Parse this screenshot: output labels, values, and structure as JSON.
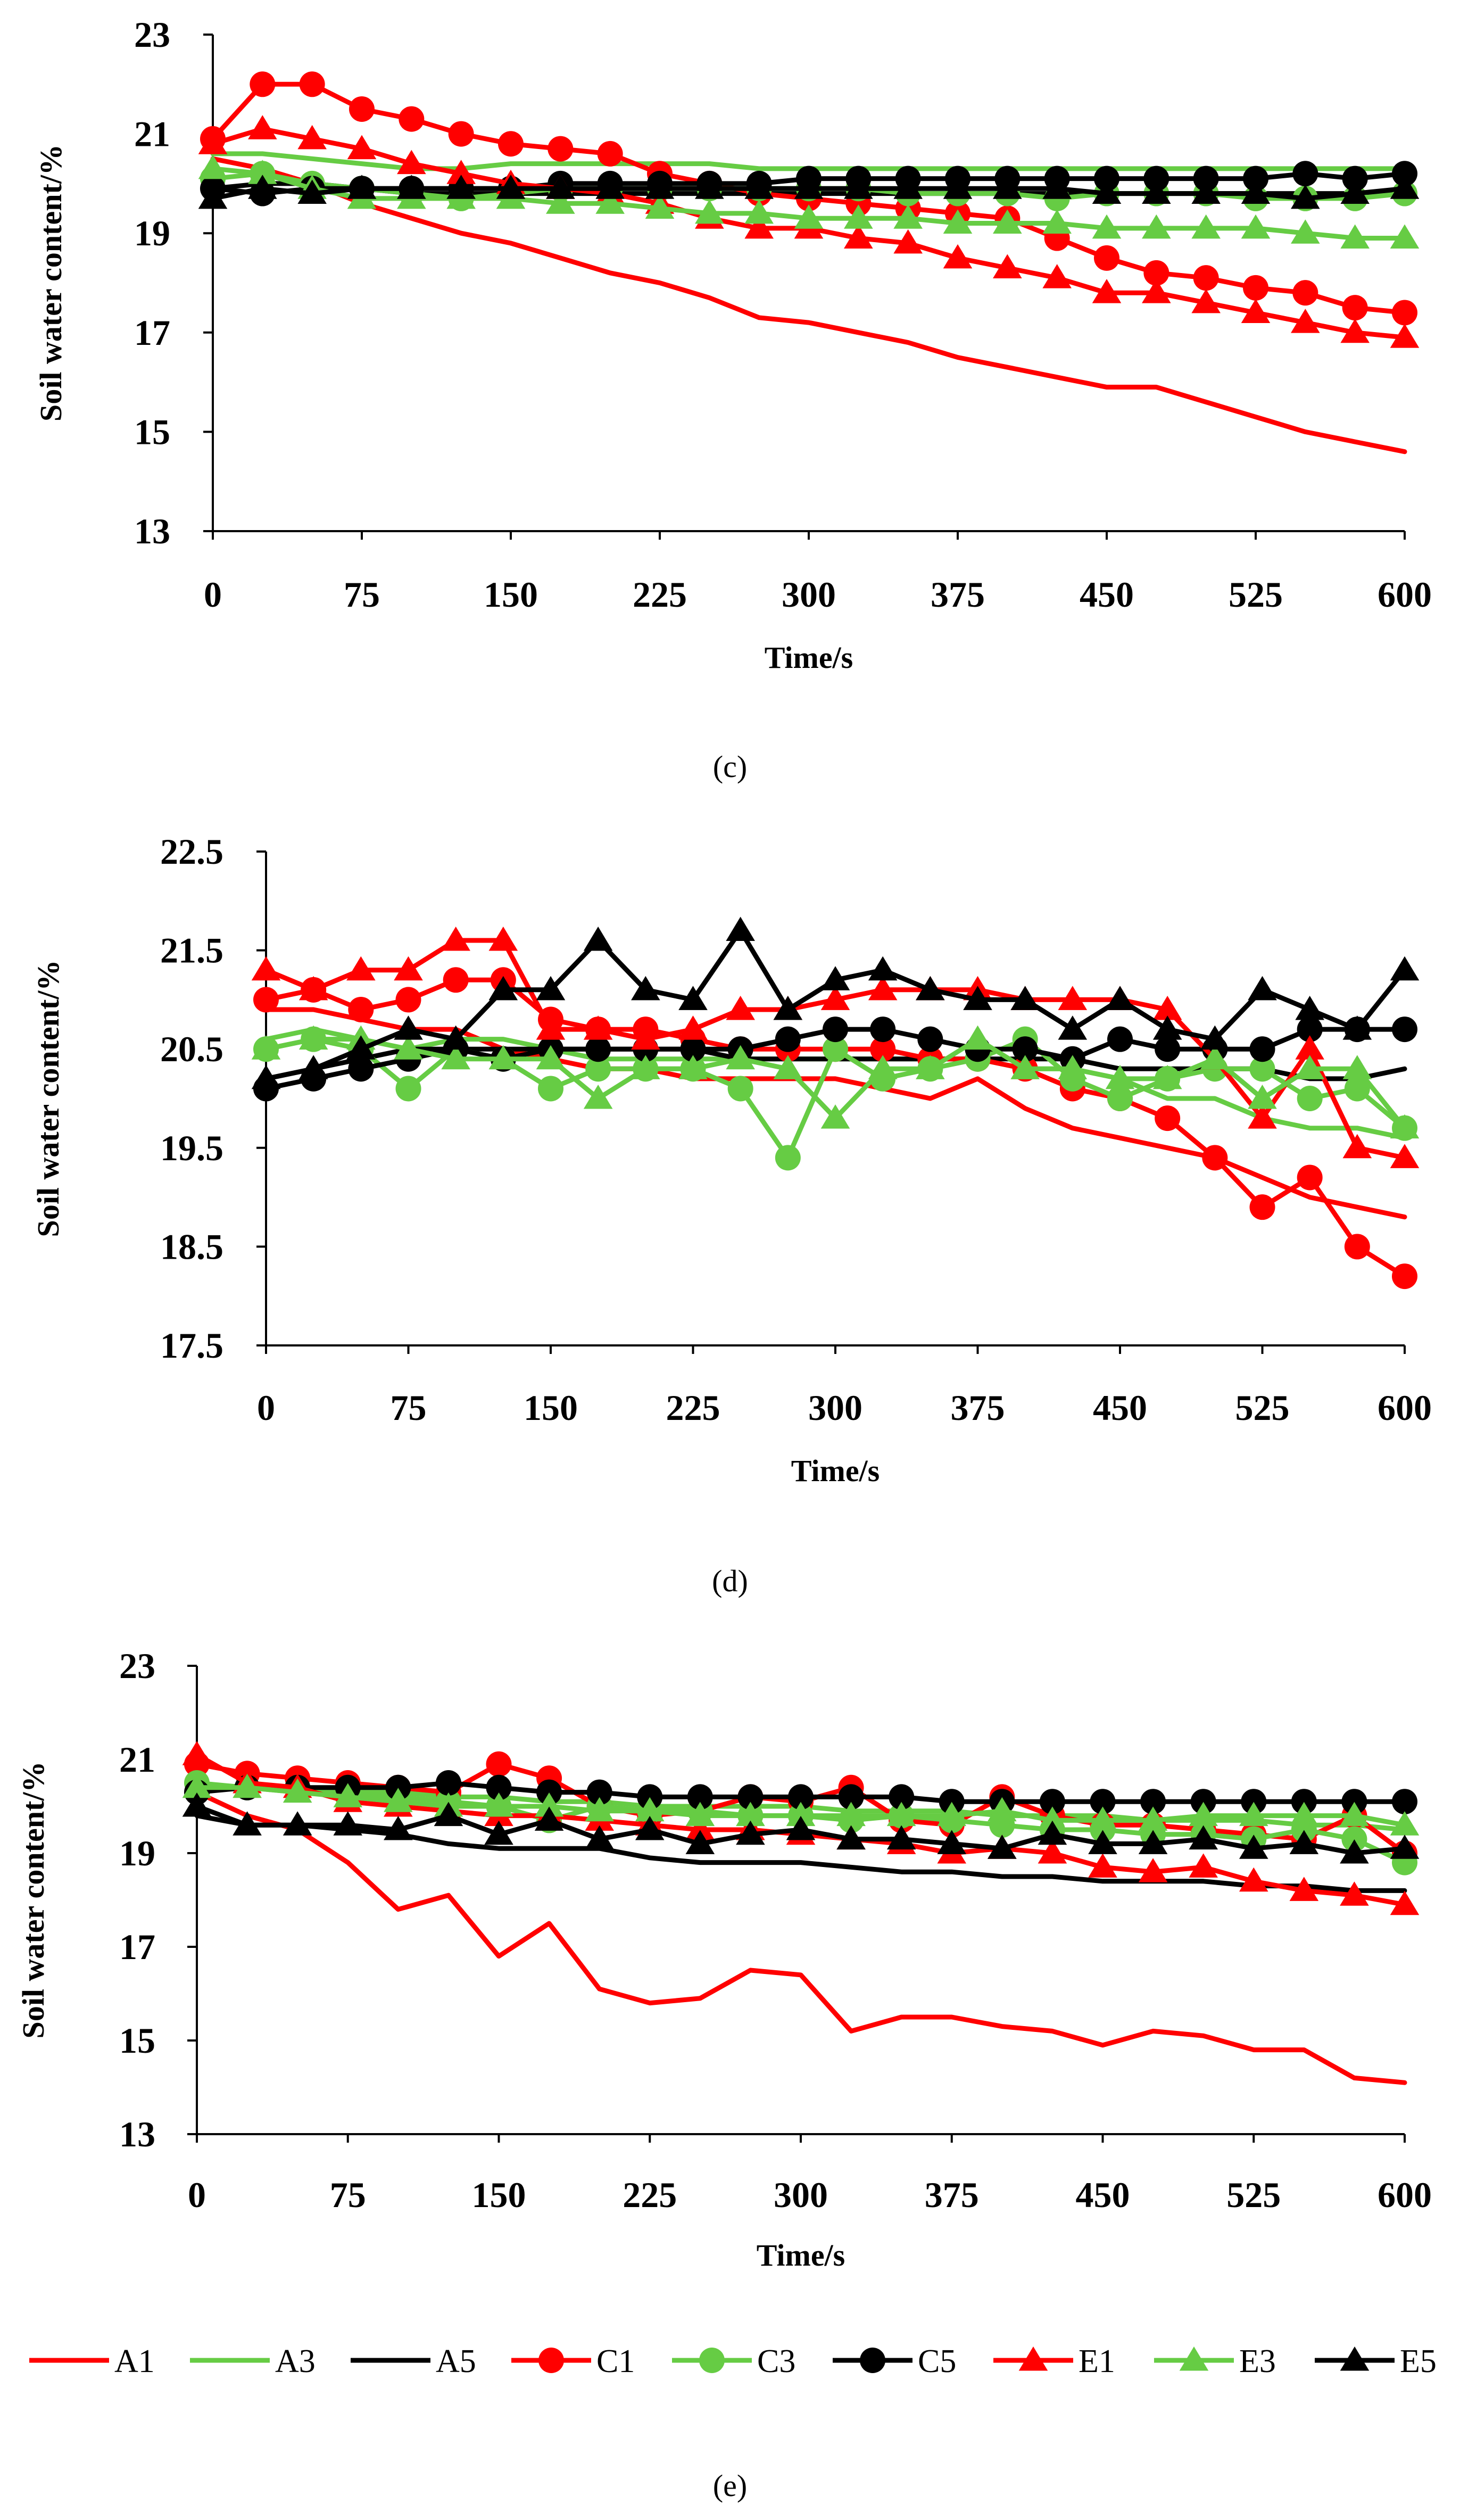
{
  "legend": [
    "A1",
    "A3",
    "A5",
    "C1",
    "C3",
    "C5",
    "E1",
    "E3",
    "E5"
  ],
  "series_styles": {
    "A1": {
      "color": "#ff0000",
      "marker": "none"
    },
    "A3": {
      "color": "#66cc44",
      "marker": "none"
    },
    "A5": {
      "color": "#000000",
      "marker": "none"
    },
    "C1": {
      "color": "#ff0000",
      "marker": "circle"
    },
    "C3": {
      "color": "#66cc44",
      "marker": "circle"
    },
    "C5": {
      "color": "#000000",
      "marker": "circle"
    },
    "E1": {
      "color": "#ff0000",
      "marker": "triangle"
    },
    "E3": {
      "color": "#66cc44",
      "marker": "triangle"
    },
    "E5": {
      "color": "#000000",
      "marker": "triangle"
    }
  },
  "chart_data": [
    {
      "type": "line",
      "caption": "(c)",
      "xlabel": "Time/s",
      "ylabel": "Soil water content/%",
      "xlim": [
        0,
        600
      ],
      "ylim": [
        13,
        23
      ],
      "x_ticks": [
        0,
        75,
        150,
        225,
        300,
        375,
        450,
        525,
        600
      ],
      "y_ticks": [
        13,
        15,
        17,
        19,
        21,
        23
      ],
      "y_tick_labels": [
        "13",
        "15",
        "17",
        "19",
        "21",
        "23"
      ],
      "x": [
        0,
        25,
        50,
        75,
        100,
        125,
        150,
        175,
        200,
        225,
        250,
        275,
        300,
        325,
        350,
        375,
        400,
        425,
        450,
        475,
        500,
        525,
        550,
        575,
        600
      ],
      "series": [
        {
          "name": "A1",
          "values": [
            20.5,
            20.3,
            20.0,
            19.6,
            19.3,
            19.0,
            18.8,
            18.5,
            18.2,
            18.0,
            17.7,
            17.3,
            17.2,
            17.0,
            16.8,
            16.5,
            16.3,
            16.1,
            15.9,
            15.9,
            15.6,
            15.3,
            15.0,
            14.8,
            14.6
          ]
        },
        {
          "name": "A3",
          "values": [
            20.6,
            20.6,
            20.5,
            20.4,
            20.3,
            20.3,
            20.4,
            20.4,
            20.4,
            20.4,
            20.4,
            20.3,
            20.3,
            20.3,
            20.3,
            20.3,
            20.3,
            20.3,
            20.3,
            20.3,
            20.3,
            20.3,
            20.3,
            20.3,
            20.3
          ]
        },
        {
          "name": "A5",
          "values": [
            19.9,
            20.0,
            20.0,
            19.9,
            19.8,
            19.8,
            19.8,
            19.8,
            19.8,
            19.8,
            19.8,
            19.8,
            19.8,
            19.8,
            19.8,
            19.8,
            19.8,
            19.8,
            19.8,
            19.8,
            19.8,
            19.8,
            19.8,
            19.8,
            19.8
          ]
        },
        {
          "name": "C1",
          "values": [
            20.9,
            22.0,
            22.0,
            21.5,
            21.3,
            21.0,
            20.8,
            20.7,
            20.6,
            20.2,
            20.0,
            19.8,
            19.7,
            19.6,
            19.5,
            19.4,
            19.3,
            18.9,
            18.5,
            18.2,
            18.1,
            17.9,
            17.8,
            17.5,
            17.4
          ]
        },
        {
          "name": "C3",
          "values": [
            20.1,
            20.2,
            20.0,
            19.9,
            19.8,
            19.7,
            19.8,
            19.9,
            19.9,
            19.9,
            19.9,
            19.9,
            19.9,
            19.9,
            19.8,
            19.8,
            19.8,
            19.7,
            19.8,
            19.8,
            19.8,
            19.7,
            19.7,
            19.7,
            19.8
          ]
        },
        {
          "name": "C5",
          "values": [
            19.9,
            19.8,
            19.9,
            19.9,
            19.9,
            19.9,
            19.9,
            20.0,
            20.0,
            20.0,
            20.0,
            20.0,
            20.1,
            20.1,
            20.1,
            20.1,
            20.1,
            20.1,
            20.1,
            20.1,
            20.1,
            20.1,
            20.2,
            20.1,
            20.2
          ]
        },
        {
          "name": "E1",
          "values": [
            20.8,
            21.1,
            20.9,
            20.7,
            20.4,
            20.2,
            20.0,
            19.9,
            19.8,
            19.6,
            19.3,
            19.1,
            19.1,
            18.9,
            18.8,
            18.5,
            18.3,
            18.1,
            17.8,
            17.8,
            17.6,
            17.4,
            17.2,
            17.0,
            16.9
          ]
        },
        {
          "name": "E3",
          "values": [
            20.3,
            20.2,
            19.9,
            19.7,
            19.7,
            19.7,
            19.7,
            19.6,
            19.6,
            19.5,
            19.4,
            19.4,
            19.3,
            19.3,
            19.3,
            19.2,
            19.2,
            19.2,
            19.1,
            19.1,
            19.1,
            19.1,
            19.0,
            18.9,
            18.9
          ]
        },
        {
          "name": "E5",
          "values": [
            19.7,
            19.9,
            19.8,
            19.9,
            19.9,
            19.9,
            19.9,
            19.9,
            19.9,
            19.9,
            19.9,
            19.9,
            19.9,
            19.9,
            19.9,
            19.9,
            19.9,
            19.9,
            19.8,
            19.8,
            19.8,
            19.8,
            19.7,
            19.8,
            19.9
          ]
        }
      ]
    },
    {
      "type": "line",
      "caption": "(d)",
      "xlabel": "Time/s",
      "ylabel": "Soil water content/%",
      "xlim": [
        0,
        600
      ],
      "ylim": [
        17.5,
        22.5
      ],
      "x_ticks": [
        0,
        75,
        150,
        225,
        300,
        375,
        450,
        525,
        600
      ],
      "y_ticks": [
        17.5,
        18.5,
        19.5,
        20.5,
        21.5,
        22.5
      ],
      "y_tick_labels": [
        "17.5",
        "18.5",
        "19.5",
        "20.5",
        "21.5",
        "22.5"
      ],
      "x": [
        0,
        25,
        50,
        75,
        100,
        125,
        150,
        175,
        200,
        225,
        250,
        275,
        300,
        325,
        350,
        375,
        400,
        425,
        450,
        475,
        500,
        525,
        550,
        575,
        600
      ],
      "series": [
        {
          "name": "A1",
          "values": [
            20.9,
            20.9,
            20.8,
            20.7,
            20.7,
            20.5,
            20.4,
            20.3,
            20.3,
            20.2,
            20.2,
            20.2,
            20.2,
            20.1,
            20.0,
            20.2,
            19.9,
            19.7,
            19.6,
            19.5,
            19.4,
            19.2,
            19.0,
            18.9,
            18.8
          ]
        },
        {
          "name": "A3",
          "values": [
            20.6,
            20.7,
            20.6,
            20.5,
            20.6,
            20.6,
            20.5,
            20.4,
            20.4,
            20.4,
            20.4,
            20.4,
            20.4,
            20.4,
            20.4,
            20.4,
            20.3,
            20.3,
            20.2,
            20.0,
            20.0,
            19.8,
            19.7,
            19.7,
            19.6
          ]
        },
        {
          "name": "A5",
          "values": [
            20.2,
            20.3,
            20.4,
            20.5,
            20.5,
            20.5,
            20.5,
            20.5,
            20.5,
            20.5,
            20.4,
            20.4,
            20.4,
            20.4,
            20.4,
            20.4,
            20.4,
            20.4,
            20.3,
            20.3,
            20.3,
            20.3,
            20.2,
            20.2,
            20.3
          ]
        },
        {
          "name": "C1",
          "values": [
            21.0,
            21.1,
            20.9,
            21.0,
            21.2,
            21.2,
            20.8,
            20.7,
            20.7,
            20.6,
            20.5,
            20.5,
            20.5,
            20.5,
            20.4,
            20.4,
            20.3,
            20.1,
            20.0,
            19.8,
            19.4,
            18.9,
            19.2,
            18.5,
            18.2
          ]
        },
        {
          "name": "C3",
          "values": [
            20.5,
            20.6,
            20.5,
            20.1,
            20.5,
            20.4,
            20.1,
            20.3,
            20.3,
            20.3,
            20.1,
            19.4,
            20.5,
            20.2,
            20.3,
            20.4,
            20.6,
            20.2,
            20.0,
            20.2,
            20.3,
            20.3,
            20.0,
            20.1,
            19.7
          ]
        },
        {
          "name": "C5",
          "values": [
            20.1,
            20.2,
            20.3,
            20.4,
            20.5,
            20.4,
            20.5,
            20.5,
            20.5,
            20.5,
            20.5,
            20.6,
            20.7,
            20.7,
            20.6,
            20.5,
            20.5,
            20.4,
            20.6,
            20.5,
            20.5,
            20.5,
            20.7,
            20.7,
            20.7
          ]
        },
        {
          "name": "E1",
          "values": [
            21.3,
            21.1,
            21.3,
            21.3,
            21.6,
            21.6,
            20.7,
            20.7,
            20.6,
            20.7,
            20.9,
            20.9,
            21.0,
            21.1,
            21.1,
            21.1,
            21.0,
            21.0,
            21.0,
            20.9,
            20.4,
            19.8,
            20.5,
            19.5,
            19.4
          ]
        },
        {
          "name": "E3",
          "values": [
            20.5,
            20.6,
            20.6,
            20.5,
            20.4,
            20.4,
            20.4,
            20.0,
            20.3,
            20.3,
            20.4,
            20.3,
            19.8,
            20.3,
            20.3,
            20.6,
            20.3,
            20.3,
            20.2,
            20.2,
            20.4,
            20.0,
            20.3,
            20.3,
            19.7
          ]
        },
        {
          "name": "E5",
          "values": [
            20.2,
            20.3,
            20.5,
            20.7,
            20.6,
            21.1,
            21.1,
            21.6,
            21.1,
            21.0,
            21.7,
            20.9,
            21.2,
            21.3,
            21.1,
            21.0,
            21.0,
            20.7,
            21.0,
            20.7,
            20.6,
            21.1,
            20.9,
            20.7,
            21.3
          ]
        }
      ]
    },
    {
      "type": "line",
      "caption": "(e)",
      "xlabel": "Time/s",
      "ylabel": "Soil water content/%",
      "xlim": [
        0,
        600
      ],
      "ylim": [
        13,
        23
      ],
      "x_ticks": [
        0,
        75,
        150,
        225,
        300,
        375,
        450,
        525,
        600
      ],
      "y_ticks": [
        13,
        15,
        17,
        19,
        21,
        23
      ],
      "y_tick_labels": [
        "13",
        "15",
        "17",
        "19",
        "21",
        "23"
      ],
      "x": [
        0,
        25,
        50,
        75,
        100,
        125,
        150,
        175,
        200,
        225,
        250,
        275,
        300,
        325,
        350,
        375,
        400,
        425,
        450,
        475,
        500,
        525,
        550,
        575,
        600
      ],
      "series": [
        {
          "name": "A1",
          "values": [
            20.3,
            19.8,
            19.5,
            18.8,
            17.8,
            18.1,
            16.8,
            17.5,
            16.1,
            15.8,
            15.9,
            16.5,
            16.4,
            15.2,
            15.5,
            15.5,
            15.3,
            15.2,
            14.9,
            15.2,
            15.1,
            14.8,
            14.8,
            14.2,
            14.1
          ]
        },
        {
          "name": "A3",
          "values": [
            20.4,
            20.4,
            20.3,
            20.3,
            20.3,
            20.2,
            20.2,
            20.1,
            20.1,
            20.0,
            20.0,
            20.0,
            20.0,
            19.9,
            19.9,
            19.9,
            19.8,
            19.8,
            19.8,
            19.7,
            19.7,
            19.7,
            19.6,
            19.6,
            19.5
          ]
        },
        {
          "name": "A5",
          "values": [
            19.8,
            19.6,
            19.6,
            19.5,
            19.4,
            19.2,
            19.1,
            19.1,
            19.1,
            18.9,
            18.8,
            18.8,
            18.8,
            18.7,
            18.6,
            18.6,
            18.5,
            18.5,
            18.4,
            18.4,
            18.4,
            18.3,
            18.3,
            18.2,
            18.2
          ]
        },
        {
          "name": "C1",
          "values": [
            20.9,
            20.7,
            20.6,
            20.5,
            20.4,
            20.3,
            20.9,
            20.6,
            20.0,
            19.8,
            19.9,
            20.2,
            20.1,
            20.4,
            19.7,
            19.6,
            20.2,
            19.8,
            19.6,
            19.6,
            19.5,
            19.4,
            19.3,
            19.8,
            19.0
          ]
        },
        {
          "name": "C3",
          "values": [
            20.5,
            20.4,
            20.4,
            20.2,
            20.2,
            20.1,
            20.0,
            19.7,
            20.0,
            19.9,
            19.9,
            19.8,
            19.8,
            19.7,
            19.8,
            19.7,
            19.6,
            19.5,
            19.5,
            19.4,
            19.4,
            19.3,
            19.5,
            19.3,
            18.8
          ]
        },
        {
          "name": "C5",
          "values": [
            20.3,
            20.4,
            20.4,
            20.4,
            20.4,
            20.5,
            20.4,
            20.3,
            20.3,
            20.2,
            20.2,
            20.2,
            20.2,
            20.2,
            20.2,
            20.1,
            20.1,
            20.1,
            20.1,
            20.1,
            20.1,
            20.1,
            20.1,
            20.1,
            20.1
          ]
        },
        {
          "name": "E1",
          "values": [
            21.1,
            20.5,
            20.4,
            20.1,
            20.0,
            19.9,
            19.8,
            19.8,
            19.7,
            19.6,
            19.5,
            19.5,
            19.4,
            19.3,
            19.2,
            19.0,
            19.1,
            19.0,
            18.7,
            18.6,
            18.7,
            18.4,
            18.2,
            18.1,
            17.9
          ]
        },
        {
          "name": "E3",
          "values": [
            20.4,
            20.4,
            20.3,
            20.2,
            20.1,
            20.0,
            20.0,
            20.0,
            19.9,
            19.9,
            19.8,
            19.8,
            19.8,
            19.8,
            19.8,
            19.8,
            19.9,
            19.7,
            19.7,
            19.7,
            19.8,
            19.8,
            19.8,
            19.8,
            19.6
          ]
        },
        {
          "name": "E5",
          "values": [
            20.0,
            19.6,
            19.6,
            19.6,
            19.5,
            19.8,
            19.4,
            19.7,
            19.3,
            19.5,
            19.2,
            19.4,
            19.5,
            19.3,
            19.3,
            19.2,
            19.1,
            19.4,
            19.2,
            19.2,
            19.3,
            19.1,
            19.2,
            19.0,
            19.1
          ]
        }
      ]
    }
  ]
}
